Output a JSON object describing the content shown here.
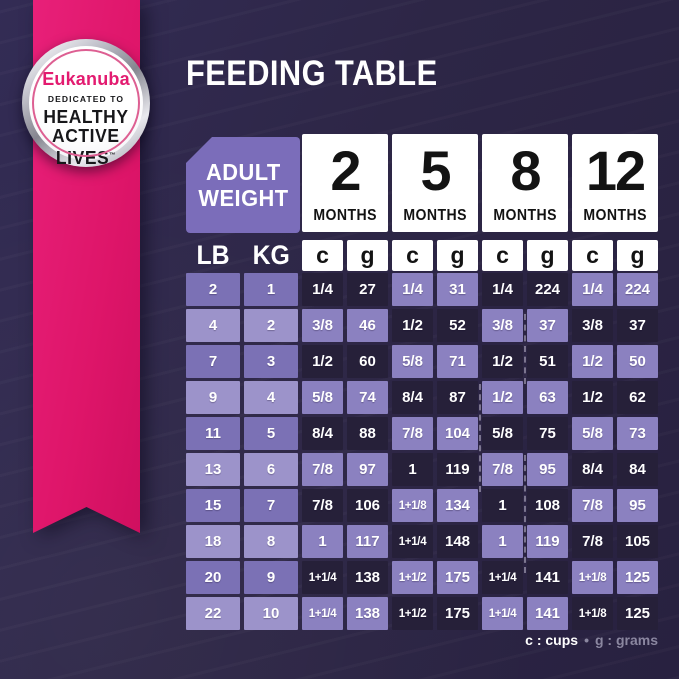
{
  "badge": {
    "brand": "Eukanuba",
    "dedication": "DEDICATED TO",
    "line1": "HEALTHY",
    "line2": "ACTIVE",
    "line3": "LIVES",
    "trademark": "™"
  },
  "title": "FEEDING TABLE",
  "corner_header": {
    "line1": "ADULT",
    "line2": "WEIGHT"
  },
  "legend": {
    "cups": "c : cups",
    "dot": "•",
    "grams": "g : grams"
  },
  "colors": {
    "background": "#2d2646",
    "ribbon_pink": "#de1569",
    "brand_pink": "#e31b70",
    "header_purple": "#7b6dba",
    "weight_cell_medium": "#7b71b5",
    "weight_cell_light": "#9c93ca",
    "data_cell_light": "#8b81c0",
    "data_cell_dark": "#262039",
    "card_white": "#ffffff",
    "card_text_black": "#131313",
    "legend_gray": "#8b87a0"
  },
  "chart_data": {
    "type": "table",
    "title": "FEEDING TABLE",
    "corner_header": [
      "ADULT",
      "WEIGHT"
    ],
    "age_columns": [
      {
        "number": "2",
        "label": "MONTHS"
      },
      {
        "number": "5",
        "label": "MONTHS"
      },
      {
        "number": "8",
        "label": "MONTHS"
      },
      {
        "number": "12",
        "label": "MONTHS"
      }
    ],
    "weight_unit_headers": [
      "LB",
      "KG"
    ],
    "serving_unit_headers": [
      "c",
      "g",
      "c",
      "g",
      "c",
      "g",
      "c",
      "g"
    ],
    "rows": [
      {
        "lb": "2",
        "kg": "1",
        "servings": [
          "1/4",
          "27",
          "1/4",
          "31",
          "1/4",
          "224",
          "1/4",
          "224"
        ]
      },
      {
        "lb": "4",
        "kg": "2",
        "servings": [
          "3/8",
          "46",
          "1/2",
          "52",
          "3/8",
          "37",
          "3/8",
          "37"
        ]
      },
      {
        "lb": "7",
        "kg": "3",
        "servings": [
          "1/2",
          "60",
          "5/8",
          "71",
          "1/2",
          "51",
          "1/2",
          "50"
        ]
      },
      {
        "lb": "9",
        "kg": "4",
        "servings": [
          "5/8",
          "74",
          "8/4",
          "87",
          "1/2",
          "63",
          "1/2",
          "62"
        ]
      },
      {
        "lb": "11",
        "kg": "5",
        "servings": [
          "8/4",
          "88",
          "7/8",
          "104",
          "5/8",
          "75",
          "5/8",
          "73"
        ]
      },
      {
        "lb": "13",
        "kg": "6",
        "servings": [
          "7/8",
          "97",
          "1",
          "119",
          "7/8",
          "95",
          "8/4",
          "84"
        ]
      },
      {
        "lb": "15",
        "kg": "7",
        "servings": [
          "7/8",
          "106",
          "1+1/8",
          "134",
          "1",
          "108",
          "7/8",
          "95"
        ]
      },
      {
        "lb": "18",
        "kg": "8",
        "servings": [
          "1",
          "117",
          "1+1/4",
          "148",
          "1",
          "119",
          "7/8",
          "105"
        ]
      },
      {
        "lb": "20",
        "kg": "9",
        "servings": [
          "1+1/4",
          "138",
          "1+1/2",
          "175",
          "1+1/4",
          "141",
          "1+1/8",
          "125"
        ]
      },
      {
        "lb": "22",
        "kg": "10",
        "servings": [
          "1+1/4",
          "138",
          "1+1/2",
          "175",
          "1+1/4",
          "141",
          "1+1/8",
          "125"
        ]
      }
    ],
    "footnote": "c : cups • g : grams",
    "layout": {
      "checkerboard": "cell is dark when (rowIndex + ageColumnIndex) is even",
      "legend_position": "bottom-right"
    }
  }
}
